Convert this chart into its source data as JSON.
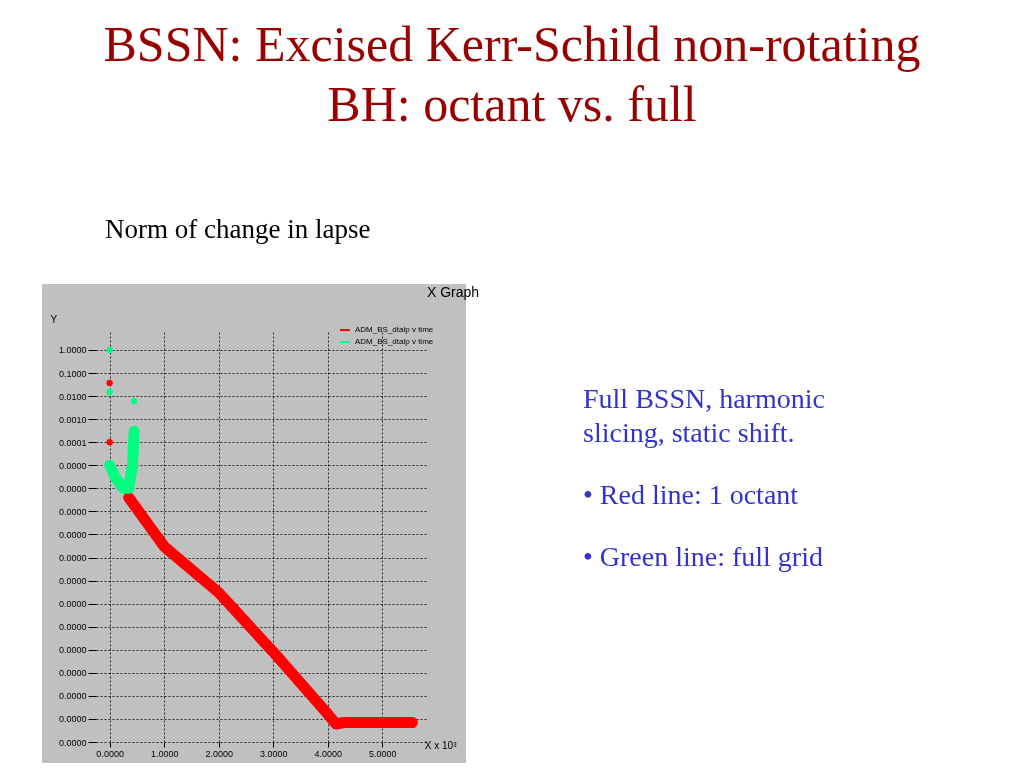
{
  "chart_data": {
    "type": "line",
    "title": "BSSN: Excised Kerr-Schild non-rotating BH: octant vs. full",
    "subtitle": "Norm of change in lapse",
    "xlabel": "X x 10³",
    "ylabel": "Y",
    "log": "y",
    "annotations": [
      "X Graph",
      "Full BSSN, harmonic slicing, static shift.",
      "• Red line: 1 octant",
      "• Green line: full grid"
    ],
    "xlim": [
      -0.25,
      5.8
    ],
    "ylim": [
      1e-17,
      6
    ],
    "xticks": [
      {
        "value": 0,
        "label": "0.0000"
      },
      {
        "value": 1,
        "label": "1.0000"
      },
      {
        "value": 2,
        "label": "2.0000"
      },
      {
        "value": 3,
        "label": "3.0000"
      },
      {
        "value": 4,
        "label": "4.0000"
      },
      {
        "value": 5,
        "label": "5.0000"
      }
    ],
    "yticks": [
      {
        "value": 1,
        "label": "1.0000"
      },
      {
        "value": 0.1,
        "label": "0.1000"
      },
      {
        "value": 0.01,
        "label": "0.0100"
      },
      {
        "value": 0.001,
        "label": "0.0010"
      },
      {
        "value": 0.0001,
        "label": "0.0001"
      },
      {
        "value": 1e-05,
        "label": "0.0000"
      },
      {
        "value": 1e-06,
        "label": "0.0000"
      },
      {
        "value": 1e-07,
        "label": "0.0000"
      },
      {
        "value": 1e-08,
        "label": "0.0000"
      },
      {
        "value": 1e-09,
        "label": "0.0000"
      },
      {
        "value": 1e-10,
        "label": "0.0000"
      },
      {
        "value": 1e-11,
        "label": "0.0000"
      },
      {
        "value": 1e-12,
        "label": "0.0000"
      },
      {
        "value": 1e-13,
        "label": "0.0000"
      },
      {
        "value": 1e-14,
        "label": "0.0000"
      },
      {
        "value": 1e-15,
        "label": "0.0000"
      },
      {
        "value": 1e-16,
        "label": "0.0000"
      },
      {
        "value": 1e-17,
        "label": "0.0000"
      }
    ],
    "grid": true,
    "legend": "top right",
    "series": [
      {
        "name": "ADM_BS_dtalp v time",
        "color": "#ff0000",
        "x": [
          0.35,
          1.0,
          2.0,
          3.0,
          4.0,
          4.15,
          4.3,
          5.55
        ],
        "values": [
          4e-07,
          3e-09,
          3e-11,
          8e-14,
          1.6e-16,
          6e-17,
          7e-17,
          7e-17
        ]
      },
      {
        "name": "ADM_BS_dtalp v time",
        "color": "#00ff80",
        "x": [
          0,
          0.1,
          0.25,
          0.35,
          0.42,
          0.45
        ],
        "values": [
          1e-05,
          3e-06,
          1e-06,
          1e-06,
          1e-05,
          0.0003
        ]
      },
      {
        "type": "scatter",
        "color": "#ff0000",
        "x": [
          0,
          0
        ],
        "values": [
          0.037,
          0.0001
        ]
      },
      {
        "type": "scatter",
        "color": "#00ff80",
        "x": [
          0,
          0,
          0.45
        ],
        "values": [
          1,
          0.015,
          0.006
        ]
      }
    ]
  }
}
